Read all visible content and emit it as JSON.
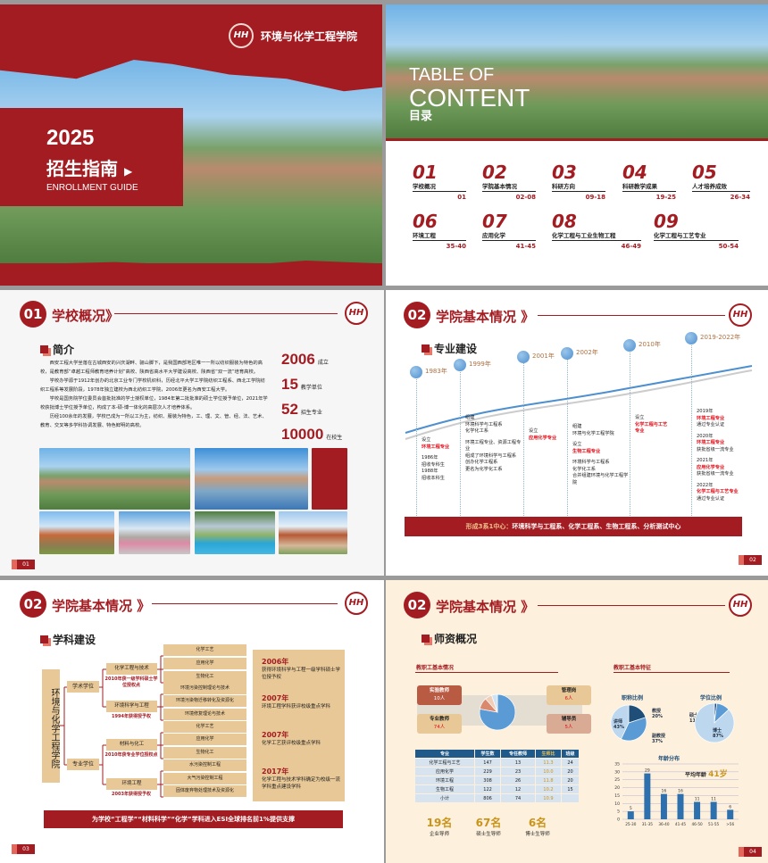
{
  "cover": {
    "school_name": "环境与化学工程学院",
    "logo_text": "HH",
    "year": "2025",
    "title": "招生指南",
    "subtitle": "ENROLLMENT GUIDE"
  },
  "toc": {
    "title_line1": "TABLE OF",
    "title_line2": "CONTENT",
    "title_cn": "目录",
    "items": [
      {
        "num": "01",
        "label": "学校概况",
        "pages": "01"
      },
      {
        "num": "02",
        "label": "学院基本情况",
        "pages": "02-08"
      },
      {
        "num": "03",
        "label": "科研方向",
        "pages": "09-18"
      },
      {
        "num": "04",
        "label": "科研教学成果",
        "pages": "19-25"
      },
      {
        "num": "05",
        "label": "人才培养成效",
        "pages": "26-34"
      },
      {
        "num": "06",
        "label": "环境工程",
        "pages": "35-40"
      },
      {
        "num": "07",
        "label": "应用化学",
        "pages": "41-45"
      },
      {
        "num": "08",
        "label": "化学工程与工业生物工程",
        "pages": "46-49"
      },
      {
        "num": "09",
        "label": "化学工程与工艺专业",
        "pages": "50-54"
      }
    ]
  },
  "page1": {
    "num": "01",
    "title": "学校概况》",
    "section": "简介",
    "page": "01",
    "paragraphs": [
      "西安工程大学坐落在古城西安的兴庆湖畔、骊山脚下，是我国西部地区唯一一所以纺织服装为特色的高校，是教育部“卓越工程师教育培养计划”高校、陕西省高水平大学建设高校、陕西省“双一流”培育高校。",
      "学校办学源于1912年创办的北京工业专门学校机织科，历经北平大学工学院纺织工程系、西北工学院纺织工程系等发展阶段，1978年独立建校为西北纺织工学院，2006年更名为西安工程大学。",
      "学校是国务院学位委员会首批批准的学士授权单位，1984年第二批批准的硕士学位授予单位，2021年学校获批博士学位授予单位，构成了本-硕-博一体化的高层次人才培养体系。",
      "历经100余年的发展，学校已成为一所以工为主，纺织、服装为特色，工、理、文、管、经、法、艺术、教育、交叉等多学科协调发展、特色鲜明的高校。"
    ],
    "stats": [
      {
        "value": "2006",
        "label": "成立"
      },
      {
        "value": "15",
        "label": "教学单位"
      },
      {
        "value": "52",
        "label": "招生专业"
      },
      {
        "value": "10000",
        "label": "在校生"
      }
    ]
  },
  "page2": {
    "num": "02",
    "title": "学院基本情况 》",
    "section": "专业建设",
    "page": "02",
    "timeline": [
      {
        "year": "1983年",
        "lines": [
          {
            "t": "设立"
          },
          {
            "t": "环境工程专业",
            "red": true
          },
          {
            "t": ""
          },
          {
            "t": "1986年"
          },
          {
            "t": "招收专科生"
          },
          {
            "t": "1988年"
          },
          {
            "t": "招收本科生"
          }
        ]
      },
      {
        "year": "1999年",
        "lines": [
          {
            "t": "组建"
          },
          {
            "t": "环境科学与工程系"
          },
          {
            "t": "化学化工系"
          },
          {
            "t": ""
          },
          {
            "t": "环境工程专业、资源工程专业"
          },
          {
            "t": "组成了环境科学与工程系"
          },
          {
            "t": "创办化学工程系"
          },
          {
            "t": "更名为化学化工系"
          }
        ]
      },
      {
        "year": "2001年",
        "lines": [
          {
            "t": "设立"
          },
          {
            "t": "应用化学专业",
            "red": true
          }
        ]
      },
      {
        "year": "2002年",
        "lines": [
          {
            "t": "组建"
          },
          {
            "t": "环境与化学工程学院"
          },
          {
            "t": ""
          },
          {
            "t": "设立"
          },
          {
            "t": "生物工程专业",
            "red": true
          },
          {
            "t": ""
          },
          {
            "t": "环境科学与工程系"
          },
          {
            "t": "化学化工系"
          },
          {
            "t": "合并组建环境与化学工程学院"
          }
        ]
      },
      {
        "year": "2010年",
        "lines": [
          {
            "t": "设立"
          },
          {
            "t": "化学工程与工艺",
            "red": true
          },
          {
            "t": "专业",
            "red": true
          }
        ]
      },
      {
        "year": "2019-2022年",
        "lines": [
          {
            "t": "2019年"
          },
          {
            "t": "环境工程专业",
            "red": true
          },
          {
            "t": "通过专业认证"
          },
          {
            "t": ""
          },
          {
            "t": "2020年"
          },
          {
            "t": "环境工程专业",
            "red": true
          },
          {
            "t": "获批省级一流专业"
          },
          {
            "t": ""
          },
          {
            "t": "2021年"
          },
          {
            "t": "应用化学专业",
            "red": true
          },
          {
            "t": "获批省级一流专业"
          },
          {
            "t": ""
          },
          {
            "t": "2022年"
          },
          {
            "t": "化学工程与工艺专业",
            "red": true
          },
          {
            "t": "通过专业认证"
          }
        ]
      }
    ],
    "banner_label": "形成3系1中心：",
    "banner_text": "环境科学与工程系、化学工程系、生物工程系、分析测试中心"
  },
  "page3": {
    "num": "02",
    "title": "学院基本情况 》",
    "section": "学科建设",
    "page": "03",
    "root": "环境与化学工程学院",
    "branches": [
      {
        "label": "学术学位",
        "groups": [
          {
            "label": "化学工程与技术",
            "note": "2010年获一级学科硕士学位授权点",
            "items": [
              "化学工艺",
              "应用化学",
              "生物化工"
            ]
          },
          {
            "label": "环境科学与工程",
            "note": "1994年获得授予权",
            "items": [
              "环境污染控制理论与技术",
              "环境污染物迁移转化及资源化",
              "环境修复理论与技术"
            ]
          }
        ]
      },
      {
        "label": "专业学位",
        "groups": [
          {
            "label": "材料与化工",
            "note": "2010年获专业学位授权点",
            "items": [
              "化学工艺",
              "应用化学",
              "生物化工"
            ]
          },
          {
            "label": "环境工程",
            "note": "2003年获得授予权",
            "items": [
              "水污染控制工程",
              "大气污染控制工程",
              "固体废弃物处理技术及资源化"
            ]
          }
        ]
      }
    ],
    "milestones": [
      {
        "year": "2006年",
        "text": "获得环境科学与工程一级学科硕士学位授予权"
      },
      {
        "year": "2007年",
        "text": "环境工程学科获评校级重点学科"
      },
      {
        "year": "2007年",
        "text": "化学工艺获评校级重点学科"
      },
      {
        "year": "2017年",
        "text": "化学工程与技术学科确定为校级一流学科重点建设学科"
      }
    ],
    "banner_text": "为学校“工程学”“材料科学”“化学”学科进入ESI全球排名前1%提供支撑"
  },
  "page4": {
    "num": "02",
    "title": "学院基本情况 》",
    "section": "师资概况",
    "page": "04",
    "left_title": "教职工基本情况",
    "cards": [
      {
        "label": "实验教师",
        "value": "10人"
      },
      {
        "label": "专业教师",
        "value": "74人"
      },
      {
        "label": "管理岗",
        "value": "6人"
      },
      {
        "label": "辅导员",
        "value": "5人"
      }
    ],
    "table": {
      "headers": [
        "专业",
        "学生数",
        "专任教师",
        "生师比",
        "班级"
      ],
      "rows": [
        [
          "化学工程与工艺",
          "147",
          "13",
          "11.3",
          "24"
        ],
        [
          "应用化学",
          "229",
          "23",
          "10.0",
          "20"
        ],
        [
          "环境工程",
          "308",
          "26",
          "11.8",
          "20"
        ],
        [
          "生物工程",
          "122",
          "12",
          "10.2",
          "15"
        ],
        [
          "小计",
          "806",
          "74",
          "10.9",
          ""
        ]
      ]
    },
    "counts": [
      {
        "value": "19名",
        "label": "企业导师"
      },
      {
        "value": "67名",
        "label": "硕士生导师"
      },
      {
        "value": "6名",
        "label": "博士生导师"
      }
    ],
    "right_title": "教职工基本特征",
    "avg_age_label": "平均年龄",
    "avg_age_value": "41岁",
    "colors": {
      "red": "#a31c22",
      "dark_blue": "#1f4e79",
      "mid_blue": "#4d8fcf",
      "light_blue": "#bcd7ee",
      "gold": "#c9941c",
      "cream": "#fdf0dc"
    }
  },
  "chart_data": [
    {
      "type": "pie",
      "title": "教职工构成",
      "slices": [
        {
          "label": "专业教师",
          "value": 74
        },
        {
          "label": "实验教师",
          "value": 10
        },
        {
          "label": "管理岗",
          "value": 6
        },
        {
          "label": "辅导员",
          "value": 5
        }
      ]
    },
    {
      "type": "pie",
      "title": "职称比例",
      "slices": [
        {
          "label": "教授",
          "value": 20
        },
        {
          "label": "副教授",
          "value": 37
        },
        {
          "label": "讲师",
          "value": 43
        }
      ],
      "unit": "%"
    },
    {
      "type": "pie",
      "title": "学位比例",
      "slices": [
        {
          "label": "学士",
          "value": 2
        },
        {
          "label": "硕士",
          "value": 11
        },
        {
          "label": "博士",
          "value": 87
        }
      ],
      "unit": "%"
    },
    {
      "type": "bar",
      "title": "年龄分布",
      "categories": [
        "25-30",
        "31-35",
        "36-40",
        "41-45",
        "46-50",
        "51-55",
        ">56"
      ],
      "values": [
        5,
        29,
        16,
        16,
        11,
        11,
        6
      ],
      "ylim": [
        0,
        35
      ],
      "yticks": [
        0,
        5,
        10,
        15,
        20,
        25,
        30,
        35
      ],
      "grid": true
    }
  ]
}
